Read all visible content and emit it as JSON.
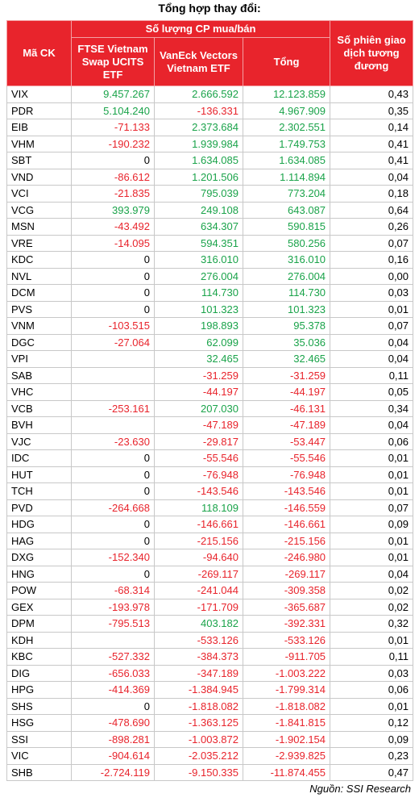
{
  "title": "Tổng hợp thay đổi:",
  "table": {
    "header": {
      "code": "Mã CK",
      "group": "Số lượng CP mua/bán",
      "ftse": "FTSE Vietnam Swap UCITS ETF",
      "vaneck": "VanEck Vectors Vietnam ETF",
      "total": "Tổng",
      "sessions": "Số phiên giao dịch tương đương"
    },
    "rows": [
      [
        "VIX",
        "9.457.267",
        "2.666.592",
        "12.123.859",
        "0,43"
      ],
      [
        "PDR",
        "5.104.240",
        "-136.331",
        "4.967.909",
        "0,35"
      ],
      [
        "EIB",
        "-71.133",
        "2.373.684",
        "2.302.551",
        "0,14"
      ],
      [
        "VHM",
        "-190.232",
        "1.939.984",
        "1.749.753",
        "0,41"
      ],
      [
        "SBT",
        "0",
        "1.634.085",
        "1.634.085",
        "0,41"
      ],
      [
        "VND",
        "-86.612",
        "1.201.506",
        "1.114.894",
        "0,04"
      ],
      [
        "VCI",
        "-21.835",
        "795.039",
        "773.204",
        "0,18"
      ],
      [
        "VCG",
        "393.979",
        "249.108",
        "643.087",
        "0,64"
      ],
      [
        "MSN",
        "-43.492",
        "634.307",
        "590.815",
        "0,26"
      ],
      [
        "VRE",
        "-14.095",
        "594.351",
        "580.256",
        "0,07"
      ],
      [
        "KDC",
        "0",
        "316.010",
        "316.010",
        "0,16"
      ],
      [
        "NVL",
        "0",
        "276.004",
        "276.004",
        "0,00"
      ],
      [
        "DCM",
        "0",
        "114.730",
        "114.730",
        "0,03"
      ],
      [
        "PVS",
        "0",
        "101.323",
        "101.323",
        "0,01"
      ],
      [
        "VNM",
        "-103.515",
        "198.893",
        "95.378",
        "0,07"
      ],
      [
        "DGC",
        "-27.064",
        "62.099",
        "35.036",
        "0,04"
      ],
      [
        "VPI",
        null,
        "32.465",
        "32.465",
        "0,04"
      ],
      [
        "SAB",
        null,
        "-31.259",
        "-31.259",
        "0,11"
      ],
      [
        "VHC",
        null,
        "-44.197",
        "-44.197",
        "0,05"
      ],
      [
        "VCB",
        "-253.161",
        "207.030",
        "-46.131",
        "0,34"
      ],
      [
        "BVH",
        null,
        "-47.189",
        "-47.189",
        "0,04"
      ],
      [
        "VJC",
        "-23.630",
        "-29.817",
        "-53.447",
        "0,06"
      ],
      [
        "IDC",
        "0",
        "-55.546",
        "-55.546",
        "0,01"
      ],
      [
        "HUT",
        "0",
        "-76.948",
        "-76.948",
        "0,01"
      ],
      [
        "TCH",
        "0",
        "-143.546",
        "-143.546",
        "0,01"
      ],
      [
        "PVD",
        "-264.668",
        "118.109",
        "-146.559",
        "0,07"
      ],
      [
        "HDG",
        "0",
        "-146.661",
        "-146.661",
        "0,09"
      ],
      [
        "HAG",
        "0",
        "-215.156",
        "-215.156",
        "0,01"
      ],
      [
        "DXG",
        "-152.340",
        "-94.640",
        "-246.980",
        "0,01"
      ],
      [
        "HNG",
        "0",
        "-269.117",
        "-269.117",
        "0,04"
      ],
      [
        "POW",
        "-68.314",
        "-241.044",
        "-309.358",
        "0,02"
      ],
      [
        "GEX",
        "-193.978",
        "-171.709",
        "-365.687",
        "0,02"
      ],
      [
        "DPM",
        "-795.513",
        "403.182",
        "-392.331",
        "0,32"
      ],
      [
        "KDH",
        null,
        "-533.126",
        "-533.126",
        "0,01"
      ],
      [
        "KBC",
        "-527.332",
        "-384.373",
        "-911.705",
        "0,11"
      ],
      [
        "DIG",
        "-656.033",
        "-347.189",
        "-1.003.222",
        "0,03"
      ],
      [
        "HPG",
        "-414.369",
        "-1.384.945",
        "-1.799.314",
        "0,06"
      ],
      [
        "SHS",
        "0",
        "-1.818.082",
        "-1.818.082",
        "0,01"
      ],
      [
        "HSG",
        "-478.690",
        "-1.363.125",
        "-1.841.815",
        "0,12"
      ],
      [
        "SSI",
        "-898.281",
        "-1.003.872",
        "-1.902.154",
        "0,09"
      ],
      [
        "VIC",
        "-904.614",
        "-2.035.212",
        "-2.939.825",
        "0,23"
      ],
      [
        "SHB",
        "-2.724.119",
        "-9.150.335",
        "-11.874.455",
        "0,47"
      ]
    ]
  },
  "source": "Nguồn: SSI Research"
}
